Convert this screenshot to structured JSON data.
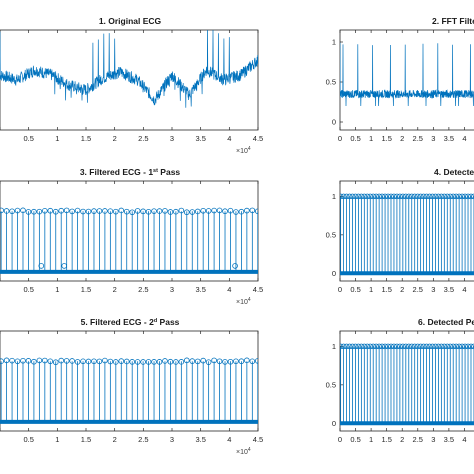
{
  "figure": {
    "background": "#ffffff",
    "series_color": "#0072BD",
    "axis_color": "#262626",
    "x_multiplier": "×10",
    "x_multiplier_exp": "4"
  },
  "chart_data": [
    {
      "id": "p1",
      "type": "line",
      "title": "1. Original ECG",
      "title_sup": "",
      "title_suffix": "",
      "xlabel": "",
      "ylabel": "",
      "xlim": [
        0,
        4.5
      ],
      "xticks": [
        0,
        0.5,
        1,
        1.5,
        2,
        2.5,
        3,
        3.5,
        4,
        4.5
      ],
      "xtick_labels": [
        "",
        "0.5",
        "1",
        "1.5",
        "2",
        "2.5",
        "3",
        "3.5",
        "4",
        "4.5"
      ],
      "x_unit_scale": "10^4 samples",
      "yticks": [],
      "ytick_labels": [],
      "series": [
        {
          "x": [
            0,
            0.3,
            0.6,
            0.9,
            1.2,
            1.5,
            1.8,
            2.1,
            2.4,
            2.7,
            3.0,
            3.3,
            3.6,
            3.9,
            4.2,
            4.5
          ],
          "baseline": [
            0.55,
            0.5,
            0.6,
            0.55,
            0.45,
            0.4,
            0.52,
            0.58,
            0.5,
            0.3,
            0.55,
            0.35,
            0.6,
            0.5,
            0.55,
            0.7
          ]
        }
      ]
    },
    {
      "id": "p2",
      "type": "line",
      "title": "2. FFT Filte",
      "title_sup": "",
      "title_suffix": "",
      "xlabel": "",
      "ylabel": "",
      "xlim": [
        0,
        4.5
      ],
      "ylim": [
        -0.1,
        1.15
      ],
      "xticks": [
        0,
        0.5,
        1,
        1.5,
        2,
        2.5,
        3,
        3.5,
        4,
        4.5
      ],
      "xtick_labels": [
        "0",
        "0.5",
        "1",
        "1.5",
        "2",
        "2.5",
        "3",
        "3.5",
        "4",
        ""
      ],
      "yticks": [
        0,
        0.5,
        1
      ],
      "ytick_labels": [
        "0",
        "0.5",
        "1"
      ],
      "series": [
        {
          "baseline": 0.35,
          "peak": 1.0,
          "beats_per_unit": 10.5
        }
      ]
    },
    {
      "id": "p3",
      "type": "stem",
      "title": "3. Filtered ECG - 1",
      "title_sup": "st",
      "title_suffix": " Pass",
      "xlabel": "",
      "ylabel": "",
      "xlim": [
        0,
        4.5
      ],
      "xticks": [
        0,
        0.5,
        1,
        1.5,
        2,
        2.5,
        3,
        3.5,
        4,
        4.5
      ],
      "xtick_labels": [
        "",
        "0.5",
        "1",
        "1.5",
        "2",
        "2.5",
        "3",
        "3.5",
        "4",
        "4.5"
      ],
      "yticks": [],
      "ytick_labels": [],
      "series": [
        {
          "peak": 1.0,
          "beats_per_unit": 10.5,
          "low_markers_x": [
            0.72,
            1.12,
            4.1
          ]
        }
      ]
    },
    {
      "id": "p4",
      "type": "stem",
      "title": "4. Detecte",
      "title_sup": "",
      "title_suffix": "",
      "xlabel": "",
      "ylabel": "",
      "xlim": [
        0,
        4.5
      ],
      "ylim": [
        -0.1,
        1.2
      ],
      "xticks": [
        0,
        0.5,
        1,
        1.5,
        2,
        2.5,
        3,
        3.5,
        4,
        4.5
      ],
      "xtick_labels": [
        "0",
        "0.5",
        "1",
        "1.5",
        "2",
        "2.5",
        "3",
        "3.5",
        "4",
        ""
      ],
      "yticks": [
        0,
        0.5,
        1
      ],
      "ytick_labels": [
        "0",
        "0.5",
        "1"
      ],
      "series": [
        {
          "peak": 1.0,
          "beats_per_unit": 10.5
        }
      ]
    },
    {
      "id": "p5",
      "type": "stem",
      "title": "5. Filtered ECG - 2",
      "title_sup": "d",
      "title_suffix": " Pass",
      "xlabel": "",
      "ylabel": "",
      "xlim": [
        0,
        4.5
      ],
      "xticks": [
        0,
        0.5,
        1,
        1.5,
        2,
        2.5,
        3,
        3.5,
        4,
        4.5
      ],
      "xtick_labels": [
        "",
        "0.5",
        "1",
        "1.5",
        "2",
        "2.5",
        "3",
        "3.5",
        "4",
        "4.5"
      ],
      "yticks": [],
      "ytick_labels": [],
      "series": [
        {
          "peak": 1.0,
          "beats_per_unit": 10.5,
          "low_markers_x": []
        }
      ]
    },
    {
      "id": "p6",
      "type": "stem",
      "title": "6. Detected Pe",
      "title_sup": "",
      "title_suffix": "",
      "xlabel": "",
      "ylabel": "",
      "xlim": [
        0,
        4.5
      ],
      "ylim": [
        -0.1,
        1.2
      ],
      "xticks": [
        0,
        0.5,
        1,
        1.5,
        2,
        2.5,
        3,
        3.5,
        4,
        4.5
      ],
      "xtick_labels": [
        "0",
        "0.5",
        "1",
        "1.5",
        "2",
        "2.5",
        "3",
        "3.5",
        "4",
        ""
      ],
      "yticks": [
        0,
        0.5,
        1
      ],
      "ytick_labels": [
        "0",
        "0.5",
        "1"
      ],
      "series": [
        {
          "peak": 1.0,
          "beats_per_unit": 10.5
        }
      ]
    }
  ]
}
